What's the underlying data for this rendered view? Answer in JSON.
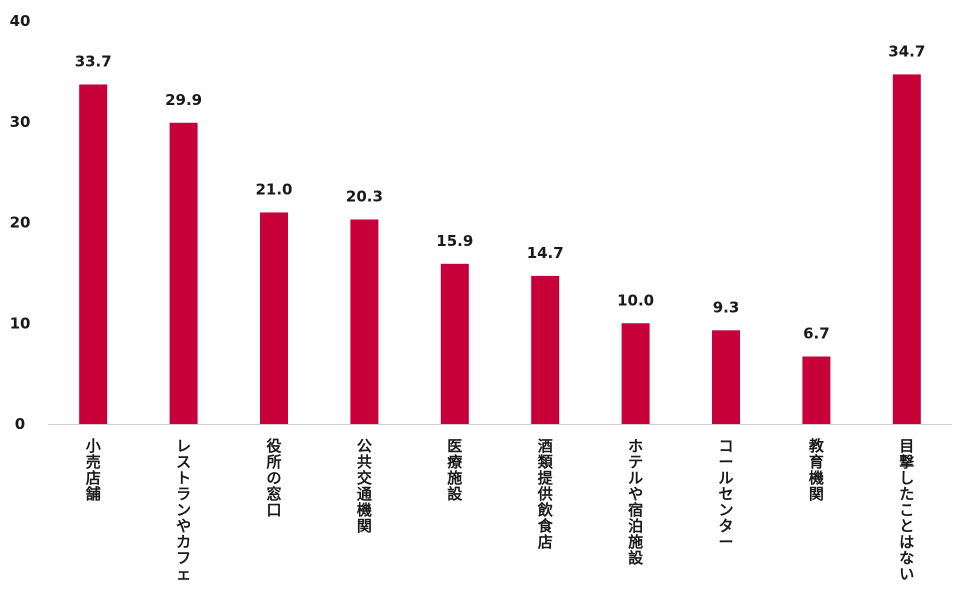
{
  "chart_data": {
    "type": "bar",
    "categories": [
      "小売店舗",
      "レストランやカフェ",
      "役所の窓口",
      "公共交通機関",
      "医療施設",
      "酒類提供飲食店",
      "ホテルや宿泊施設",
      "コールセンター",
      "教育機関",
      "目撃したことはない"
    ],
    "values": [
      33.7,
      29.9,
      21.0,
      20.3,
      15.9,
      14.7,
      10.0,
      9.3,
      6.7,
      34.7
    ],
    "value_labels": [
      "33.7",
      "29.9",
      "21.0",
      "20.3",
      "15.9",
      "14.7",
      "10.0",
      "9.3",
      "6.7",
      "34.7"
    ],
    "ylim": [
      0,
      40
    ],
    "yticks": [
      "0",
      "10",
      "20",
      "30",
      "40"
    ],
    "grid": false,
    "bar_color": "#c8003a",
    "axis_color": "#d0d0d0"
  }
}
